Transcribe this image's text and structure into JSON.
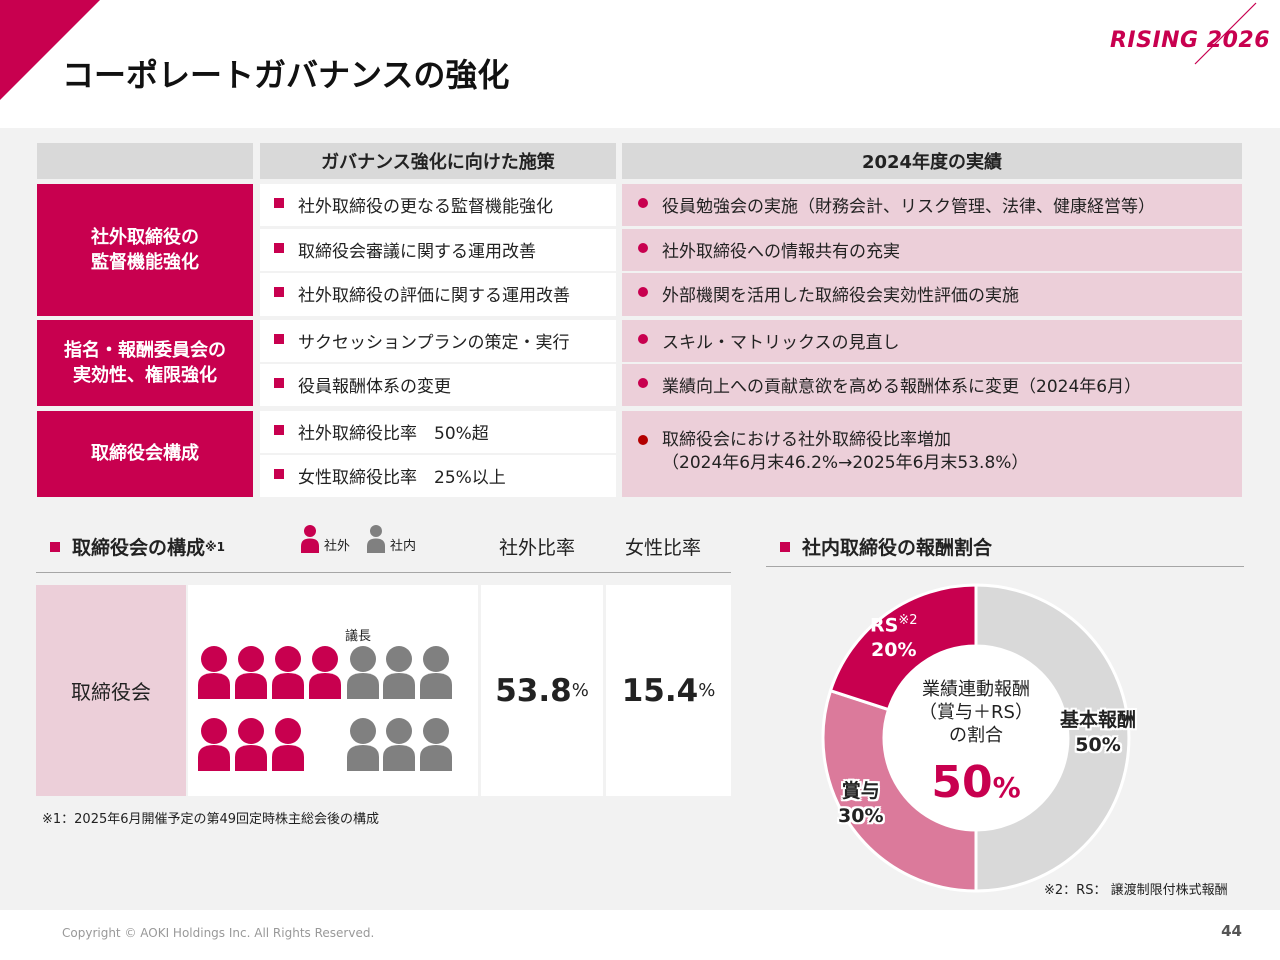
{
  "page": {
    "title": "コーポレートガバナンスの強化",
    "logo": "RISING 2026",
    "copyright": "Copyright © AOKI Holdings Inc. All Rights Reserved.",
    "page_number": "44",
    "brand_color": "#c8004f"
  },
  "table": {
    "headers": {
      "policy": "ガバナンス強化に向けた施策",
      "result": "2024年度の実績"
    },
    "groups": [
      {
        "label": [
          "社外取締役の",
          "監督機能強化"
        ],
        "policies": [
          "社外取締役の更なる監督機能強化",
          "取締役会審議に関する運用改善",
          "社外取締役の評価に関する運用改善"
        ],
        "results": [
          "役員勉強会の実施（財務会計、リスク管理、法律、健康経営等）",
          "社外取締役への情報共有の充実",
          "外部機関を活用した取締役会実効性評価の実施"
        ]
      },
      {
        "label": [
          "指名・報酬委員会の",
          "実効性、権限強化"
        ],
        "policies": [
          "サクセッションプランの策定・実行",
          "役員報酬体系の変更"
        ],
        "results": [
          "スキル・マトリックスの見直し",
          "業績向上への貢献意欲を高める報酬体系に変更（2024年6月）"
        ]
      },
      {
        "label": [
          "取締役会構成"
        ],
        "policies": [
          "社外取締役比率　50%超",
          "女性取締役比率　25%以上"
        ],
        "results": [
          "取締役会における社外取締役比率増加",
          "（2024年6月末46.2%→2025年6月末53.8%）"
        ]
      }
    ]
  },
  "board": {
    "section_title": "取締役会の構成",
    "section_note_mark": "※1",
    "legend": {
      "outside": "社外",
      "inside": "社内"
    },
    "col_outside": "社外比率",
    "col_female": "女性比率",
    "row_label": "取締役会",
    "chair_label": "議長",
    "outside_count": 7,
    "inside_count": 6,
    "outside_ratio": "53.8",
    "female_ratio": "15.4",
    "unit": "%",
    "outside_color": "#c8004f",
    "inside_color": "#808080",
    "note": "※1：2025年6月開催予定の第49回定時株主総会後の構成"
  },
  "compensation": {
    "section_title": "社内取締役の報酬割合",
    "center_lines": [
      "業績連動報酬",
      "（賞与＋RS）",
      "の割合"
    ],
    "center_value": "50",
    "center_unit": "%",
    "note": "※2：RS：  譲渡制限付株式報酬"
  },
  "chart_data": {
    "type": "pie",
    "donut": true,
    "slices": [
      {
        "label": "基本報酬",
        "value": 50,
        "display": "50%",
        "color": "#d9d9d9"
      },
      {
        "label": "賞与",
        "value": 30,
        "display": "30%",
        "color": "#db7a9b"
      },
      {
        "label": "RS",
        "label_note": "※2",
        "value": 20,
        "display": "20%",
        "color": "#c8004f"
      }
    ]
  }
}
